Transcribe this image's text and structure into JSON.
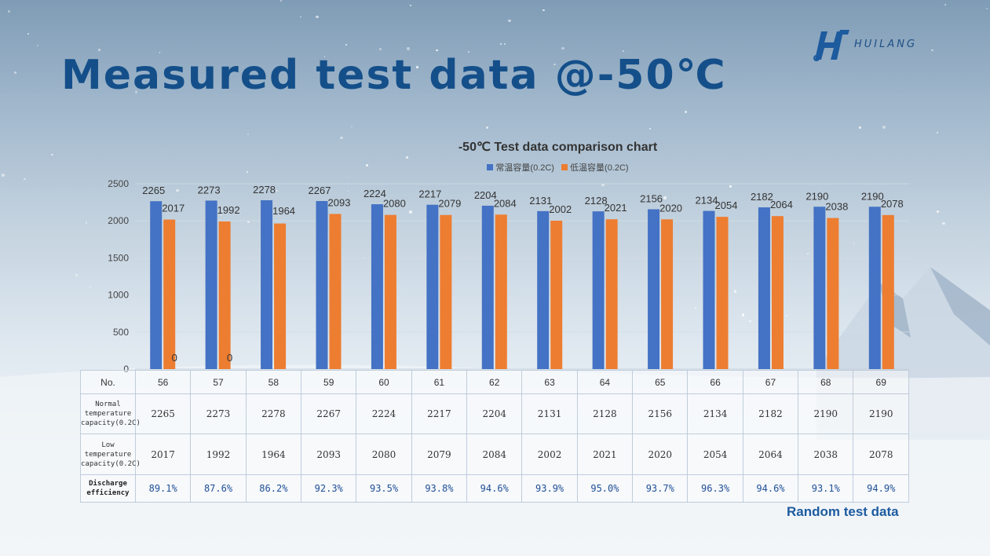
{
  "page": {
    "title": "Measured test data @-50℃",
    "logo_text": "HUILANG",
    "footnote": "Random test data"
  },
  "chart_data": {
    "type": "bar",
    "title": "-50℃ Test data comparison chart",
    "categories": [
      "56",
      "57",
      "58",
      "59",
      "60",
      "61",
      "62",
      "63",
      "64",
      "65",
      "66",
      "67",
      "68",
      "69"
    ],
    "series": [
      {
        "name": "常温容量(0.2C)",
        "color": "#4472c4",
        "values": [
          2265,
          2273,
          2278,
          2267,
          2224,
          2217,
          2204,
          2131,
          2128,
          2156,
          2134,
          2182,
          2190,
          2190
        ]
      },
      {
        "name": "低温容量(0.2C)",
        "color": "#ed7d31",
        "values": [
          2017,
          1992,
          1964,
          2093,
          2080,
          2079,
          2084,
          2002,
          2021,
          2020,
          2054,
          2064,
          2038,
          2078
        ]
      }
    ],
    "extra_labels": [
      {
        "category": "56",
        "text": "0"
      },
      {
        "category": "57",
        "text": "0"
      }
    ],
    "yticks": [
      0,
      500,
      1000,
      1500,
      2000,
      2500
    ],
    "ylim": [
      0,
      2500
    ],
    "legend": "top",
    "grid": true
  },
  "table": {
    "row_headers": {
      "no": "No.",
      "normal": "Normal temperature capacity(0.2C)",
      "low": "Low temperature capacity(0.2C)",
      "eff": "Discharge efficiency"
    },
    "efficiency": [
      "89.1%",
      "87.6%",
      "86.2%",
      "92.3%",
      "93.5%",
      "93.8%",
      "94.6%",
      "93.9%",
      "95.0%",
      "93.7%",
      "96.3%",
      "94.6%",
      "93.1%",
      "94.9%"
    ]
  }
}
